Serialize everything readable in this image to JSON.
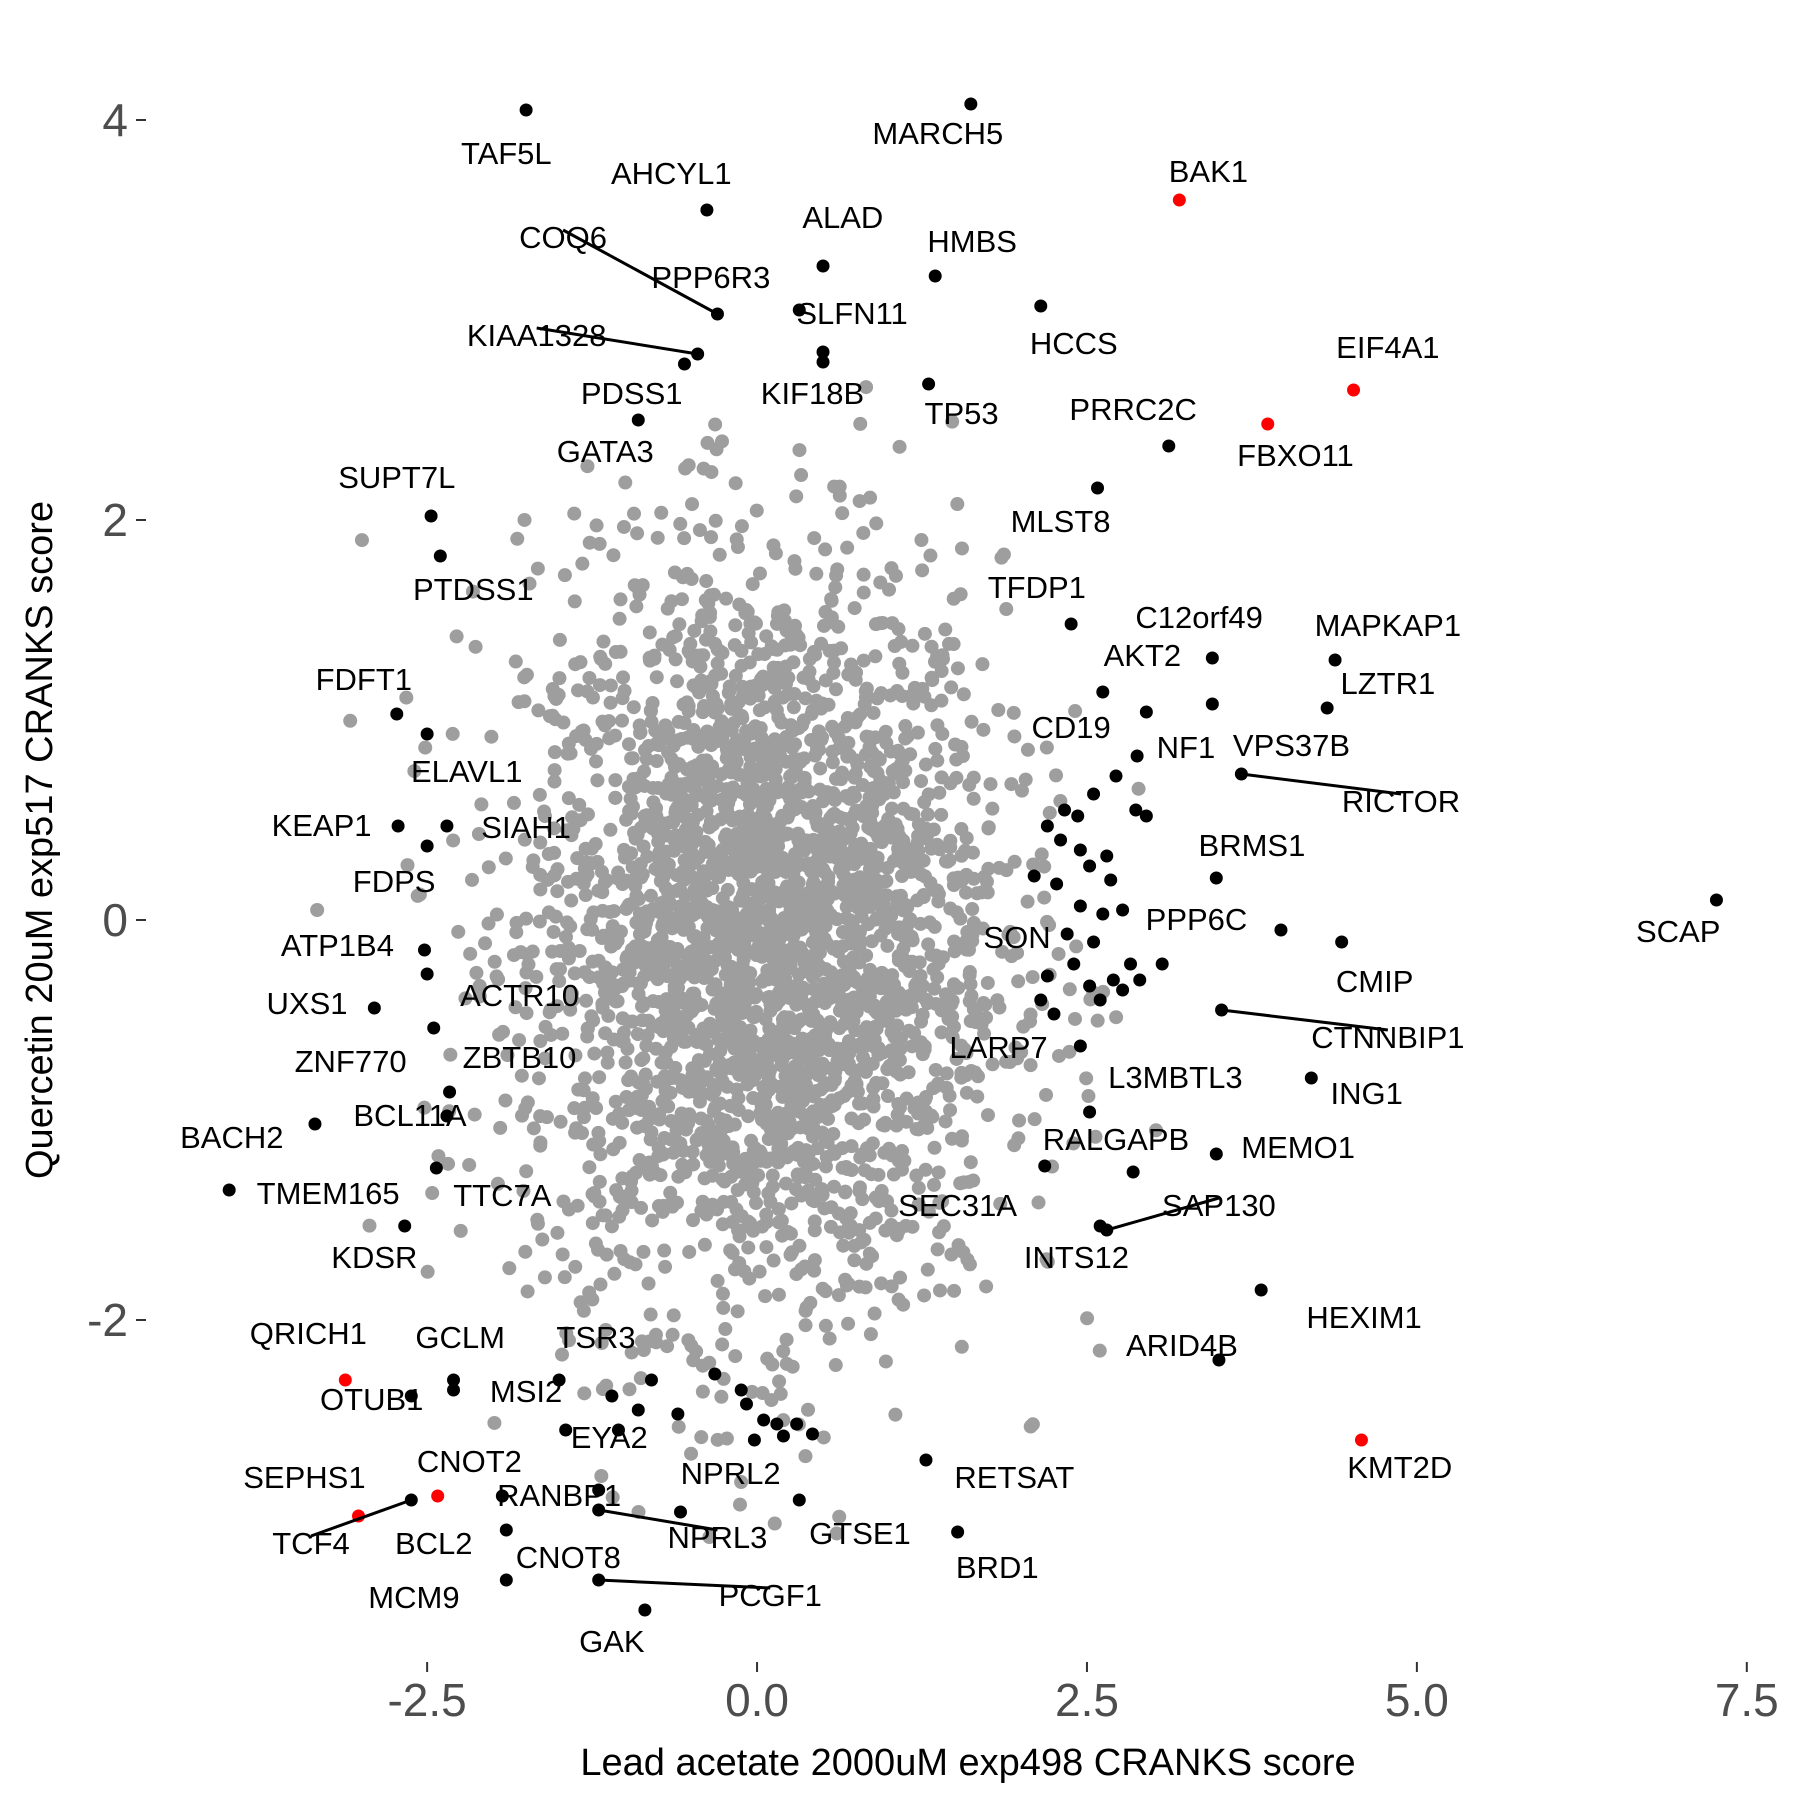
{
  "chart_data": {
    "type": "scatter",
    "xlabel": "Lead acetate 2000uM exp498 CRANKS score",
    "ylabel": "Quercetin 20uM exp517 CRANKS score",
    "xlim": [
      -4.6,
      7.6
    ],
    "ylim": [
      -3.7,
      4.3
    ],
    "x_ticks": [
      -2.5,
      0.0,
      2.5,
      5.0,
      7.5
    ],
    "x_tick_labels": [
      "-2.5",
      "0.0",
      "2.5",
      "5.0",
      "7.5"
    ],
    "y_ticks": [
      4,
      2,
      0,
      -2
    ],
    "y_tick_labels": [
      "4",
      "2",
      "0",
      "-2"
    ],
    "grid": false,
    "colors": {
      "background": "#9e9e9e",
      "labeled": "#000000",
      "highlight": "#ff0000"
    },
    "background_genes": {
      "description_count": 3000,
      "center": [
        0.05,
        -0.1
      ],
      "sd": [
        0.9,
        0.95
      ]
    },
    "labeled_genes": [
      {
        "name": "TAF5L",
        "x": -1.75,
        "y": 4.05,
        "color": "#000000",
        "lx": -1.9,
        "ly": 3.82
      },
      {
        "name": "MARCH5",
        "x": 1.62,
        "y": 4.08,
        "color": "#000000",
        "lx": 1.37,
        "ly": 3.92
      },
      {
        "name": "BAK1",
        "x": 3.2,
        "y": 3.6,
        "color": "#ff0000",
        "lx": 3.42,
        "ly": 3.73
      },
      {
        "name": "AHCYL1",
        "x": -0.38,
        "y": 3.55,
        "color": "#000000",
        "lx": -0.65,
        "ly": 3.72
      },
      {
        "name": "COQ6",
        "x": -0.3,
        "y": 3.03,
        "color": "#000000",
        "lx": -1.47,
        "ly": 3.4
      },
      {
        "name": "ALAD",
        "x": 0.5,
        "y": 3.27,
        "color": "#000000",
        "lx": 0.65,
        "ly": 3.5
      },
      {
        "name": "HMBS",
        "x": 1.35,
        "y": 3.22,
        "color": "#000000",
        "lx": 1.63,
        "ly": 3.38
      },
      {
        "name": "PPP6R3",
        "x": 0.32,
        "y": 3.05,
        "color": "#000000",
        "lx": -0.35,
        "ly": 3.2
      },
      {
        "name": "SLFN11",
        "x": 0.5,
        "y": 2.84,
        "color": "#000000",
        "lx": 0.72,
        "ly": 3.02
      },
      {
        "name": "HCCS",
        "x": 2.15,
        "y": 3.07,
        "color": "#000000",
        "lx": 2.4,
        "ly": 2.87
      },
      {
        "name": "KIAA1328",
        "x": -0.45,
        "y": 2.83,
        "color": "#000000",
        "lx": -1.67,
        "ly": 2.91
      },
      {
        "name": "EIF4A1",
        "x": 4.52,
        "y": 2.65,
        "color": "#ff0000",
        "lx": 4.78,
        "ly": 2.85
      },
      {
        "name": "PDSS1",
        "x": -0.55,
        "y": 2.78,
        "color": "#000000",
        "lx": -0.95,
        "ly": 2.62
      },
      {
        "name": "KIF18B",
        "x": 0.5,
        "y": 2.79,
        "color": "#000000",
        "lx": 0.42,
        "ly": 2.62
      },
      {
        "name": "TP53",
        "x": 1.3,
        "y": 2.68,
        "color": "#000000",
        "lx": 1.55,
        "ly": 2.52
      },
      {
        "name": "PRRC2C",
        "x": 3.12,
        "y": 2.37,
        "color": "#000000",
        "lx": 2.85,
        "ly": 2.54
      },
      {
        "name": "FBXO11",
        "x": 3.87,
        "y": 2.48,
        "color": "#ff0000",
        "lx": 4.08,
        "ly": 2.31
      },
      {
        "name": "GATA3",
        "x": -0.9,
        "y": 2.5,
        "color": "#000000",
        "lx": -1.15,
        "ly": 2.33
      },
      {
        "name": "SUPT7L",
        "x": -2.47,
        "y": 2.02,
        "color": "#000000",
        "lx": -2.73,
        "ly": 2.2
      },
      {
        "name": "MLST8",
        "x": 2.58,
        "y": 2.16,
        "color": "#000000",
        "lx": 2.3,
        "ly": 1.98
      },
      {
        "name": "PTDSS1",
        "x": -2.4,
        "y": 1.82,
        "color": "#000000",
        "lx": -2.15,
        "ly": 1.64
      },
      {
        "name": "TFDP1",
        "x": 2.38,
        "y": 1.48,
        "color": "#000000",
        "lx": 2.12,
        "ly": 1.65
      },
      {
        "name": "C12orf49",
        "x": 3.45,
        "y": 1.31,
        "color": "#000000",
        "lx": 3.35,
        "ly": 1.5
      },
      {
        "name": "MAPKAP1",
        "x": 4.38,
        "y": 1.3,
        "color": "#000000",
        "lx": 4.78,
        "ly": 1.46
      },
      {
        "name": "AKT2",
        "x": 2.62,
        "y": 1.14,
        "color": "#000000",
        "lx": 2.92,
        "ly": 1.31
      },
      {
        "name": "LZTR1",
        "x": 4.32,
        "y": 1.06,
        "color": "#000000",
        "lx": 4.78,
        "ly": 1.17
      },
      {
        "name": "FDFT1",
        "x": -2.73,
        "y": 1.03,
        "color": "#000000",
        "lx": -2.98,
        "ly": 1.19
      },
      {
        "name": "CD19",
        "x": 2.95,
        "y": 1.04,
        "color": "#000000",
        "lx": 2.38,
        "ly": 0.95
      },
      {
        "name": "NF1",
        "x": 2.88,
        "y": 0.82,
        "color": "#000000",
        "lx": 3.25,
        "ly": 0.85
      },
      {
        "name": "VPS37B",
        "x": 3.45,
        "y": 1.08,
        "color": "#000000",
        "lx": 4.05,
        "ly": 0.86
      },
      {
        "name": "RICTOR",
        "x": 3.67,
        "y": 0.73,
        "color": "#000000",
        "lx": 4.88,
        "ly": 0.58
      },
      {
        "name": "ELAVL1",
        "x": -2.5,
        "y": 0.93,
        "color": "#000000",
        "lx": -2.2,
        "ly": 0.73
      },
      {
        "name": "KEAP1",
        "x": -2.72,
        "y": 0.47,
        "color": "#000000",
        "lx": -3.3,
        "ly": 0.46
      },
      {
        "name": "SIAH1",
        "x": -2.35,
        "y": 0.47,
        "color": "#000000",
        "lx": -1.75,
        "ly": 0.45
      },
      {
        "name": "FDPS",
        "x": -2.5,
        "y": 0.37,
        "color": "#000000",
        "lx": -2.75,
        "ly": 0.18
      },
      {
        "name": "BRMS1",
        "x": 3.48,
        "y": 0.21,
        "color": "#000000",
        "lx": 3.75,
        "ly": 0.36
      },
      {
        "name": "SCAP",
        "x": 7.27,
        "y": 0.1,
        "color": "#000000",
        "lx": 6.98,
        "ly": -0.07
      },
      {
        "name": "PPP6C",
        "x": 3.97,
        "y": -0.05,
        "color": "#000000",
        "lx": 3.33,
        "ly": -0.01
      },
      {
        "name": "SON",
        "x": 2.55,
        "y": -0.11,
        "color": "#000000",
        "lx": 1.97,
        "ly": -0.1
      },
      {
        "name": "ATP1B4",
        "x": -2.52,
        "y": -0.15,
        "color": "#000000",
        "lx": -3.18,
        "ly": -0.14
      },
      {
        "name": "CMIP",
        "x": 4.43,
        "y": -0.11,
        "color": "#000000",
        "lx": 4.68,
        "ly": -0.32
      },
      {
        "name": "ACTR10",
        "x": -2.5,
        "y": -0.27,
        "color": "#000000",
        "lx": -1.8,
        "ly": -0.39
      },
      {
        "name": "UXS1",
        "x": -2.9,
        "y": -0.44,
        "color": "#000000",
        "lx": -3.41,
        "ly": -0.43
      },
      {
        "name": "CTNNBIP1",
        "x": 3.52,
        "y": -0.45,
        "color": "#000000",
        "lx": 4.78,
        "ly": -0.6
      },
      {
        "name": "ZNF770",
        "x": -2.45,
        "y": -0.54,
        "color": "#000000",
        "lx": -3.08,
        "ly": -0.72
      },
      {
        "name": "ZBTB10",
        "x": -2.33,
        "y": -0.86,
        "color": "#000000",
        "lx": -1.8,
        "ly": -0.7
      },
      {
        "name": "LARP7",
        "x": 2.45,
        "y": -0.63,
        "color": "#000000",
        "lx": 1.83,
        "ly": -0.65
      },
      {
        "name": "L3MBTL3",
        "x": 2.52,
        "y": -0.96,
        "color": "#000000",
        "lx": 3.17,
        "ly": -0.8
      },
      {
        "name": "ING1",
        "x": 4.2,
        "y": -0.79,
        "color": "#000000",
        "lx": 4.62,
        "ly": -0.88
      },
      {
        "name": "BCL11A",
        "x": -2.35,
        "y": -0.98,
        "color": "#000000",
        "lx": -2.63,
        "ly": -0.99
      },
      {
        "name": "BACH2",
        "x": -3.35,
        "y": -1.02,
        "color": "#000000",
        "lx": -3.98,
        "ly": -1.1
      },
      {
        "name": "RALGAPB",
        "x": 2.85,
        "y": -1.26,
        "color": "#000000",
        "lx": 2.72,
        "ly": -1.11
      },
      {
        "name": "MEMO1",
        "x": 3.48,
        "y": -1.17,
        "color": "#000000",
        "lx": 4.1,
        "ly": -1.15
      },
      {
        "name": "TMEM165",
        "x": -4.0,
        "y": -1.35,
        "color": "#000000",
        "lx": -3.25,
        "ly": -1.38
      },
      {
        "name": "TTC7A",
        "x": -2.43,
        "y": -1.24,
        "color": "#000000",
        "lx": -1.93,
        "ly": -1.39
      },
      {
        "name": "SEC31A",
        "x": 2.18,
        "y": -1.23,
        "color": "#000000",
        "lx": 1.52,
        "ly": -1.44
      },
      {
        "name": "SAP130",
        "x": 2.65,
        "y": -1.55,
        "color": "#000000",
        "lx": 3.5,
        "ly": -1.44
      },
      {
        "name": "KDSR",
        "x": -2.67,
        "y": -1.53,
        "color": "#000000",
        "lx": -2.9,
        "ly": -1.7
      },
      {
        "name": "INTS12",
        "x": 2.6,
        "y": -1.53,
        "color": "#000000",
        "lx": 2.42,
        "ly": -1.7
      },
      {
        "name": "HEXIM1",
        "x": 3.82,
        "y": -1.85,
        "color": "#000000",
        "lx": 4.6,
        "ly": -2.0
      },
      {
        "name": "QRICH1",
        "x": -3.12,
        "y": -2.3,
        "color": "#ff0000",
        "lx": -3.4,
        "ly": -2.08
      },
      {
        "name": "GCLM",
        "x": -2.3,
        "y": -2.3,
        "color": "#000000",
        "lx": -2.25,
        "ly": -2.1
      },
      {
        "name": "TSR3",
        "x": -1.5,
        "y": -2.3,
        "color": "#000000",
        "lx": -1.22,
        "ly": -2.1
      },
      {
        "name": "ARID4B",
        "x": 3.5,
        "y": -2.2,
        "color": "#000000",
        "lx": 3.22,
        "ly": -2.14
      },
      {
        "name": "OTUB1",
        "x": -2.62,
        "y": -2.38,
        "color": "#000000",
        "lx": -2.92,
        "ly": -2.41
      },
      {
        "name": "MSI2",
        "x": -2.3,
        "y": -2.35,
        "color": "#000000",
        "lx": -1.75,
        "ly": -2.37
      },
      {
        "name": "EYA2",
        "x": -1.45,
        "y": -2.55,
        "color": "#000000",
        "lx": -1.12,
        "ly": -2.6
      },
      {
        "name": "KMT2D",
        "x": 4.58,
        "y": -2.6,
        "color": "#ff0000",
        "lx": 4.87,
        "ly": -2.75
      },
      {
        "name": "CNOT2",
        "x": -2.42,
        "y": -2.88,
        "color": "#ff0000",
        "lx": -2.18,
        "ly": -2.72
      },
      {
        "name": "RETSAT",
        "x": 1.28,
        "y": -2.7,
        "color": "#000000",
        "lx": 1.95,
        "ly": -2.8
      },
      {
        "name": "SEPHS1",
        "x": -3.02,
        "y": -2.98,
        "color": "#ff0000",
        "lx": -3.43,
        "ly": -2.8
      },
      {
        "name": "NPRL2",
        "x": -0.58,
        "y": -2.96,
        "color": "#000000",
        "lx": -0.2,
        "ly": -2.78
      },
      {
        "name": "RANBP1",
        "x": -1.2,
        "y": -2.85,
        "color": "#000000",
        "lx": -1.5,
        "ly": -2.89
      },
      {
        "name": "GTSE1",
        "x": 0.32,
        "y": -2.9,
        "color": "#000000",
        "lx": 0.78,
        "ly": -3.08
      },
      {
        "name": "BRD1",
        "x": 1.52,
        "y": -3.06,
        "color": "#000000",
        "lx": 1.82,
        "ly": -3.25
      },
      {
        "name": "TCF4",
        "x": -2.62,
        "y": -2.9,
        "color": "#000000",
        "lx": -3.38,
        "ly": -3.13
      },
      {
        "name": "BCL2",
        "x": -1.93,
        "y": -2.88,
        "color": "#000000",
        "lx": -2.45,
        "ly": -3.13
      },
      {
        "name": "NPRL3",
        "x": -1.2,
        "y": -2.95,
        "color": "#000000",
        "lx": -0.3,
        "ly": -3.1
      },
      {
        "name": "CNOT8",
        "x": -1.9,
        "y": -3.05,
        "color": "#000000",
        "lx": -1.43,
        "ly": -3.2
      },
      {
        "name": "PCGF1",
        "x": -1.2,
        "y": -3.3,
        "color": "#000000",
        "lx": 0.1,
        "ly": -3.39
      },
      {
        "name": "MCM9",
        "x": -1.9,
        "y": -3.3,
        "color": "#000000",
        "lx": -2.6,
        "ly": -3.4
      },
      {
        "name": "GAK",
        "x": -0.85,
        "y": -3.45,
        "color": "#000000",
        "lx": -1.1,
        "ly": -3.62
      }
    ],
    "extra_labeled_points": [
      [
        2.33,
        0.55
      ],
      [
        2.55,
        0.63
      ],
      [
        2.72,
        0.72
      ],
      [
        2.43,
        0.52
      ],
      [
        2.95,
        0.52
      ],
      [
        2.87,
        0.55
      ],
      [
        2.2,
        0.47
      ],
      [
        2.3,
        0.4
      ],
      [
        2.45,
        0.35
      ],
      [
        2.52,
        0.27
      ],
      [
        2.65,
        0.32
      ],
      [
        2.68,
        0.2
      ],
      [
        2.1,
        0.22
      ],
      [
        2.27,
        0.18
      ],
      [
        2.45,
        0.07
      ],
      [
        2.62,
        0.03
      ],
      [
        2.77,
        0.05
      ],
      [
        2.35,
        -0.07
      ],
      [
        2.4,
        -0.22
      ],
      [
        2.52,
        -0.33
      ],
      [
        2.83,
        -0.22
      ],
      [
        2.7,
        -0.3
      ],
      [
        2.9,
        -0.3
      ],
      [
        2.2,
        -0.28
      ],
      [
        2.25,
        -0.47
      ],
      [
        2.6,
        -0.4
      ],
      [
        2.77,
        -0.35
      ],
      [
        2.15,
        -0.4
      ],
      [
        3.07,
        -0.22
      ],
      [
        -0.32,
        -2.27
      ],
      [
        -0.12,
        -2.35
      ],
      [
        -0.08,
        -2.42
      ],
      [
        0.05,
        -2.5
      ],
      [
        0.15,
        -2.52
      ],
      [
        0.3,
        -2.52
      ],
      [
        0.42,
        -2.57
      ],
      [
        -0.02,
        -2.6
      ],
      [
        0.2,
        -2.58
      ],
      [
        -1.1,
        -2.38
      ],
      [
        -0.9,
        -2.45
      ],
      [
        -0.6,
        -2.47
      ],
      [
        -0.8,
        -2.3
      ],
      [
        -1.05,
        -2.55
      ]
    ],
    "exponent_note": ""
  }
}
